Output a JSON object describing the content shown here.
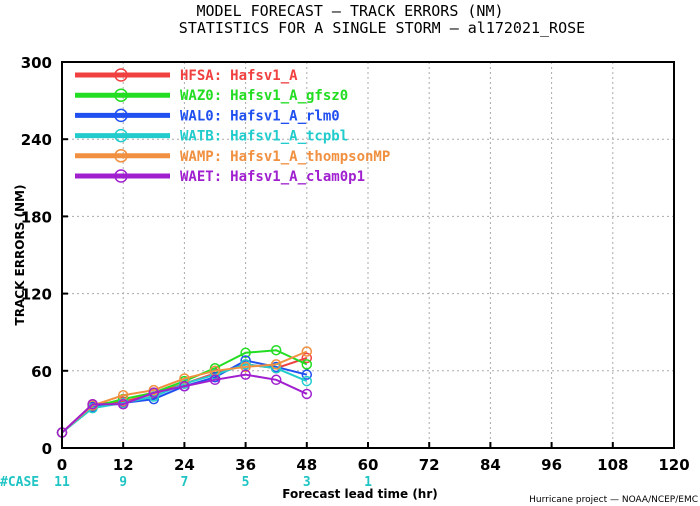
{
  "chart_data": {
    "type": "line",
    "title": "MODEL FORECAST — TRACK ERRORS (NM)",
    "subtitle": "STATISTICS FOR A SINGLE STORM — al172021_ROSE",
    "xlabel": "Forecast lead time (hr)",
    "ylabel": "TRACK ERRORS (NM)",
    "xlim": [
      0,
      120
    ],
    "ylim": [
      0,
      300
    ],
    "xticks": [
      "0",
      "12",
      "24",
      "36",
      "48",
      "60",
      "72",
      "84",
      "96",
      "108",
      "120"
    ],
    "yticks": [
      "0",
      "60",
      "120",
      "180",
      "240",
      "300"
    ],
    "grid": true,
    "legend_position": "top-left",
    "x": [
      0,
      6,
      12,
      18,
      24,
      30,
      36,
      42,
      48
    ],
    "series": [
      {
        "label": "HFSA:",
        "name": "Hafsv1_A",
        "color": "#f04040",
        "values": [
          12,
          34,
          36,
          42,
          50,
          58,
          65,
          62,
          70
        ]
      },
      {
        "label": "WAZ0:",
        "name": "Hafsv1_A_gfsz0",
        "color": "#22dd22",
        "values": [
          12,
          32,
          38,
          43,
          52,
          62,
          74,
          76,
          65
        ]
      },
      {
        "label": "WAL0:",
        "name": "Hafsv1_A_rlm0",
        "color": "#2050f0",
        "values": [
          12,
          32,
          35,
          38,
          48,
          55,
          68,
          63,
          57
        ]
      },
      {
        "label": "WATB:",
        "name": "Hafsv1_A_tcpbl",
        "color": "#22cccc",
        "values": [
          12,
          31,
          35,
          40,
          50,
          57,
          65,
          62,
          52
        ]
      },
      {
        "label": "WAMP:",
        "name": "Hafsv1_A_thompsonMP",
        "color": "#f09040",
        "values": [
          12,
          33,
          41,
          45,
          54,
          60,
          63,
          65,
          75
        ]
      },
      {
        "label": "WAET:",
        "name": "Hafsv1_A_clam0p1",
        "color": "#a020d0",
        "values": [
          12,
          34,
          34,
          43,
          48,
          53,
          57,
          53,
          42
        ]
      }
    ],
    "case_counts": {
      "label": "#CASE",
      "x": [
        0,
        12,
        24,
        36,
        48,
        60
      ],
      "values": [
        "11",
        "9",
        "7",
        "5",
        "3",
        "1"
      ]
    },
    "credit": "Hurricane project — NOAA/NCEP/EMC"
  }
}
